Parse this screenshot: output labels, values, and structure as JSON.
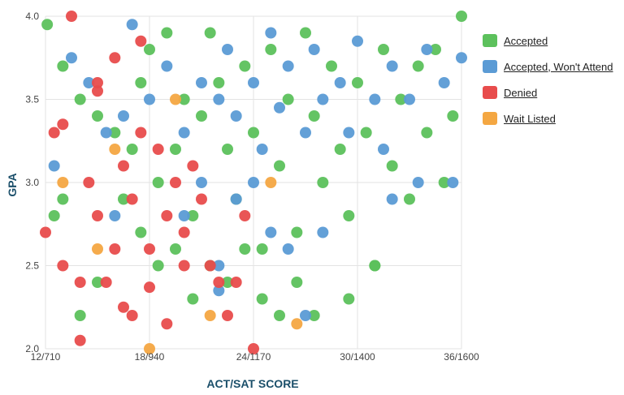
{
  "chart_data": {
    "type": "scatter",
    "xlabel": "ACT/SAT SCORE",
    "ylabel": "GPA",
    "xlim": [
      12,
      36
    ],
    "ylim": [
      2.0,
      4.0
    ],
    "x_ticks": [
      {
        "value": 12,
        "label": "12/710"
      },
      {
        "value": 18,
        "label": "18/940"
      },
      {
        "value": 24,
        "label": "24/1170"
      },
      {
        "value": 30,
        "label": "30/1400"
      },
      {
        "value": 36,
        "label": "36/1600"
      }
    ],
    "y_ticks": [
      {
        "value": 2.0,
        "label": "2.0"
      },
      {
        "value": 2.5,
        "label": "2.5"
      },
      {
        "value": 3.0,
        "label": "3.0"
      },
      {
        "value": 3.5,
        "label": "3.5"
      },
      {
        "value": 4.0,
        "label": "4.0"
      }
    ],
    "grid": true,
    "legend_position": "right",
    "series": [
      {
        "name": "Accepted",
        "color": "#5cc15c",
        "points": [
          [
            12.1,
            3.95
          ],
          [
            13,
            3.7
          ],
          [
            14,
            3.5
          ],
          [
            15,
            3.4
          ],
          [
            16,
            3.3
          ],
          [
            17,
            3.2
          ],
          [
            17.5,
            3.6
          ],
          [
            18,
            3.8
          ],
          [
            18.5,
            3.0
          ],
          [
            19,
            3.9
          ],
          [
            19.5,
            3.2
          ],
          [
            20,
            3.5
          ],
          [
            20.5,
            2.8
          ],
          [
            21,
            3.4
          ],
          [
            21.5,
            3.9
          ],
          [
            22,
            3.6
          ],
          [
            22.5,
            3.2
          ],
          [
            23,
            2.9
          ],
          [
            23.5,
            3.7
          ],
          [
            24,
            3.3
          ],
          [
            24.5,
            2.6
          ],
          [
            25,
            3.8
          ],
          [
            25.5,
            3.1
          ],
          [
            26,
            3.5
          ],
          [
            26.5,
            2.7
          ],
          [
            27,
            3.9
          ],
          [
            27.5,
            3.4
          ],
          [
            28,
            3.0
          ],
          [
            28.5,
            3.7
          ],
          [
            29,
            3.2
          ],
          [
            29.5,
            2.8
          ],
          [
            30,
            3.6
          ],
          [
            30.5,
            3.3
          ],
          [
            31,
            2.5
          ],
          [
            31.5,
            3.8
          ],
          [
            32,
            3.1
          ],
          [
            32.5,
            3.5
          ],
          [
            33,
            2.9
          ],
          [
            33.5,
            3.7
          ],
          [
            34,
            3.3
          ],
          [
            34.5,
            3.8
          ],
          [
            35,
            3.0
          ],
          [
            35.5,
            3.4
          ],
          [
            36,
            4.0
          ],
          [
            16.5,
            2.9
          ],
          [
            17.5,
            2.7
          ],
          [
            18.5,
            2.5
          ],
          [
            19.5,
            2.6
          ],
          [
            20.5,
            2.3
          ],
          [
            21.5,
            2.5
          ],
          [
            22.5,
            2.4
          ],
          [
            23.5,
            2.6
          ],
          [
            24.5,
            2.3
          ],
          [
            25.5,
            2.2
          ],
          [
            26.5,
            2.4
          ],
          [
            27.5,
            2.2
          ],
          [
            29.5,
            2.3
          ],
          [
            31,
            2.5
          ],
          [
            15,
            2.4
          ],
          [
            14,
            2.2
          ],
          [
            13,
            2.9
          ],
          [
            12.5,
            2.8
          ]
        ]
      },
      {
        "name": "Accepted, Won't Attend",
        "color": "#5b9bd5",
        "points": [
          [
            12.5,
            3.1
          ],
          [
            13.5,
            3.75
          ],
          [
            14.5,
            3.6
          ],
          [
            15.5,
            3.3
          ],
          [
            16.5,
            3.4
          ],
          [
            17,
            3.95
          ],
          [
            18,
            3.5
          ],
          [
            19,
            3.7
          ],
          [
            20,
            3.3
          ],
          [
            21,
            3.6
          ],
          [
            22,
            3.5
          ],
          [
            22.5,
            3.8
          ],
          [
            23,
            3.4
          ],
          [
            24,
            3.6
          ],
          [
            24.5,
            3.2
          ],
          [
            25,
            3.9
          ],
          [
            25.5,
            3.45
          ],
          [
            26,
            3.7
          ],
          [
            27,
            3.3
          ],
          [
            27.5,
            3.8
          ],
          [
            28,
            3.5
          ],
          [
            29,
            3.6
          ],
          [
            29.5,
            3.3
          ],
          [
            30,
            3.85
          ],
          [
            31,
            3.5
          ],
          [
            31.5,
            3.2
          ],
          [
            32,
            3.7
          ],
          [
            33,
            3.5
          ],
          [
            33.5,
            3.0
          ],
          [
            34,
            3.8
          ],
          [
            35,
            3.6
          ],
          [
            35.5,
            3.0
          ],
          [
            36,
            3.75
          ],
          [
            20,
            2.8
          ],
          [
            21,
            3.0
          ],
          [
            22,
            2.5
          ],
          [
            23,
            2.9
          ],
          [
            24,
            3.0
          ],
          [
            25,
            2.7
          ],
          [
            26,
            2.6
          ],
          [
            27,
            2.2
          ],
          [
            28,
            2.7
          ],
          [
            32,
            2.9
          ],
          [
            22,
            2.35
          ],
          [
            16,
            2.8
          ]
        ]
      },
      {
        "name": "Denied",
        "color": "#e84c4c",
        "points": [
          [
            12,
            2.7
          ],
          [
            13,
            2.5
          ],
          [
            13.5,
            4.0
          ],
          [
            14,
            2.4
          ],
          [
            14,
            2.05
          ],
          [
            14.5,
            3.0
          ],
          [
            15,
            2.8
          ],
          [
            15,
            3.6
          ],
          [
            15.5,
            2.4
          ],
          [
            16,
            2.6
          ],
          [
            16.5,
            3.1
          ],
          [
            16.5,
            2.25
          ],
          [
            17,
            2.9
          ],
          [
            17,
            2.2
          ],
          [
            17.5,
            3.3
          ],
          [
            18,
            2.6
          ],
          [
            18,
            2.37
          ],
          [
            18.5,
            3.2
          ],
          [
            19,
            2.8
          ],
          [
            19,
            2.15
          ],
          [
            19.5,
            3.0
          ],
          [
            20,
            2.5
          ],
          [
            20,
            2.7
          ],
          [
            20.5,
            3.1
          ],
          [
            21,
            2.9
          ],
          [
            21.5,
            2.5
          ],
          [
            22,
            2.4
          ],
          [
            22.5,
            2.2
          ],
          [
            23,
            2.4
          ],
          [
            23.5,
            2.8
          ],
          [
            24,
            2.0
          ],
          [
            16,
            3.75
          ],
          [
            15,
            3.55
          ],
          [
            17.5,
            3.85
          ],
          [
            12.5,
            3.3
          ],
          [
            13,
            3.35
          ]
        ]
      },
      {
        "name": "Wait Listed",
        "color": "#f4a742",
        "points": [
          [
            13,
            3.0
          ],
          [
            15,
            2.6
          ],
          [
            16,
            3.2
          ],
          [
            18,
            2.0
          ],
          [
            19.5,
            3.5
          ],
          [
            21.5,
            2.2
          ],
          [
            26.5,
            2.15
          ],
          [
            25,
            3.0
          ]
        ]
      }
    ]
  }
}
